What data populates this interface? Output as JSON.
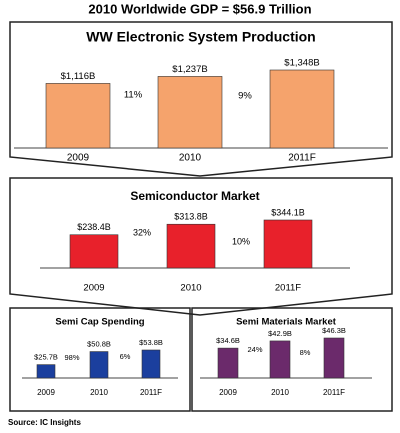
{
  "title": "2010 Worldwide GDP = $56.9 Trillion",
  "source": "Source: IC Insights",
  "chart_data": [
    {
      "type": "bar",
      "title": "WW Electronic System Production",
      "categories": [
        "2009",
        "2010",
        "2011F"
      ],
      "values": [
        1116,
        1237,
        1348
      ],
      "value_labels": [
        "$1,116B",
        "$1,237B",
        "$1,348B"
      ],
      "annotations": [
        "11%",
        "9%"
      ],
      "color": "#f5a36c"
    },
    {
      "type": "bar",
      "title": "Semiconductor Market",
      "categories": [
        "2009",
        "2010",
        "2011F"
      ],
      "values": [
        238.4,
        313.8,
        344.1
      ],
      "value_labels": [
        "$238.4B",
        "$313.8B",
        "$344.1B"
      ],
      "annotations": [
        "32%",
        "10%"
      ],
      "color": "#e8212b"
    },
    {
      "type": "bar",
      "title": "Semi Cap Spending",
      "categories": [
        "2009",
        "2010",
        "2011F"
      ],
      "values": [
        25.7,
        50.8,
        53.8
      ],
      "value_labels": [
        "$25.7B",
        "$50.8B",
        "$53.8B"
      ],
      "annotations": [
        "98%",
        "6%"
      ],
      "color": "#1b3f9e"
    },
    {
      "type": "bar",
      "title": "Semi Materials Market",
      "categories": [
        "2009",
        "2010",
        "2011F"
      ],
      "values": [
        34.6,
        42.9,
        46.3
      ],
      "value_labels": [
        "$34.6B",
        "$42.9B",
        "$46.3B"
      ],
      "annotations": [
        "24%",
        "8%"
      ],
      "color": "#6b2a6b"
    }
  ]
}
